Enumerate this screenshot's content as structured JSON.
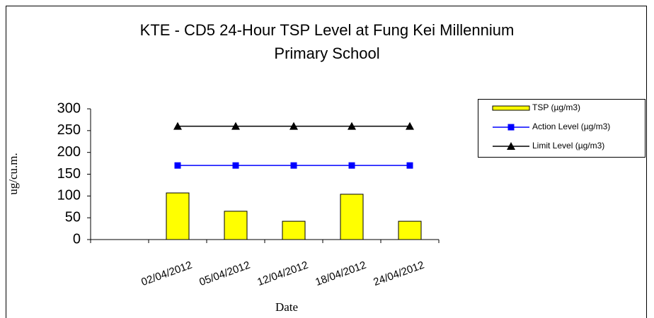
{
  "chart_data": {
    "type": "bar+line",
    "title": [
      "KTE - CD5 24-Hour TSP Level at Fung Kei Millennium",
      "Primary School"
    ],
    "y_label": "ug/cu.m.",
    "x_label": "Date",
    "categories": [
      null,
      "02/04/2012",
      "05/04/2012",
      "12/04/2012",
      "18/04/2012",
      "24/04/2012"
    ],
    "series": [
      {
        "name": "TSP (µg/m3)",
        "type": "bar",
        "color": "#ffff00",
        "values": [
          null,
          107,
          65,
          42,
          104,
          42
        ]
      },
      {
        "name": "Action Level (µg/m3)",
        "type": "line",
        "marker": "square",
        "color": "#0000ff",
        "values": [
          null,
          170,
          170,
          170,
          170,
          170
        ]
      },
      {
        "name": "Limit Level (µg/m3)",
        "type": "line",
        "marker": "triangle",
        "color": "#000000",
        "values": [
          null,
          260,
          260,
          260,
          260,
          260
        ]
      }
    ],
    "ylim": [
      0,
      300
    ],
    "yticks": [
      0,
      50,
      100,
      150,
      200,
      250,
      300
    ],
    "grid": false,
    "legend": "right"
  }
}
